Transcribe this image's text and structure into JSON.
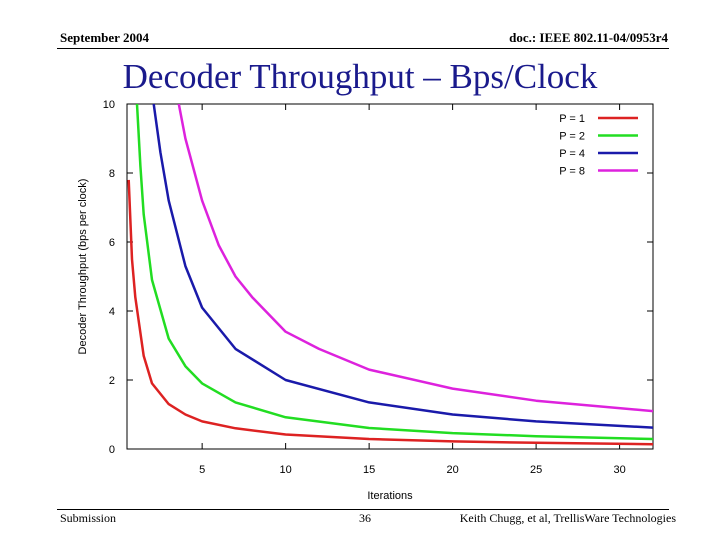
{
  "header": {
    "left": "September 2004",
    "right": "doc.: IEEE 802.11-04/0953r4"
  },
  "title": "Decoder Throughput – Bps/Clock",
  "footer": {
    "left": "Submission",
    "center": "36",
    "right": "Keith Chugg, et al, TrellisWare Technologies"
  },
  "chart_data": {
    "type": "line",
    "xlabel": "Iterations",
    "ylabel": "Decoder Throughput (bps per clock)",
    "xlim": [
      0.5,
      32
    ],
    "ylim": [
      0,
      10
    ],
    "xticks": [
      5,
      10,
      15,
      20,
      25,
      30
    ],
    "yticks": [
      0,
      2,
      4,
      6,
      8,
      10
    ],
    "legend_position": "top-right",
    "grid": false,
    "series": [
      {
        "name": "P = 1",
        "color": "#dd2222",
        "x": [
          0.6,
          0.8,
          1,
          1.5,
          2,
          3,
          4,
          5,
          7,
          10,
          15,
          20,
          25,
          32
        ],
        "y": [
          7.8,
          5.5,
          4.4,
          2.7,
          1.9,
          1.3,
          1.0,
          0.8,
          0.6,
          0.42,
          0.29,
          0.22,
          0.18,
          0.14
        ]
      },
      {
        "name": "P = 2",
        "color": "#22dd22",
        "x": [
          1.1,
          1.3,
          1.5,
          2,
          3,
          4,
          5,
          7,
          10,
          15,
          20,
          25,
          32
        ],
        "y": [
          10,
          8.2,
          6.8,
          4.9,
          3.2,
          2.4,
          1.9,
          1.35,
          0.92,
          0.61,
          0.46,
          0.37,
          0.29
        ]
      },
      {
        "name": "P = 4",
        "color": "#1a1aaa",
        "x": [
          2.1,
          2.5,
          3,
          4,
          5,
          7,
          10,
          15,
          20,
          25,
          32
        ],
        "y": [
          10,
          8.6,
          7.2,
          5.3,
          4.1,
          2.9,
          2.0,
          1.35,
          1.0,
          0.8,
          0.62
        ]
      },
      {
        "name": "P = 8",
        "color": "#dd22dd",
        "x": [
          3.6,
          4,
          5,
          6,
          7,
          8,
          10,
          12,
          15,
          20,
          25,
          32
        ],
        "y": [
          10,
          9.0,
          7.2,
          5.9,
          5.0,
          4.4,
          3.4,
          2.9,
          2.3,
          1.75,
          1.4,
          1.1
        ]
      }
    ]
  }
}
